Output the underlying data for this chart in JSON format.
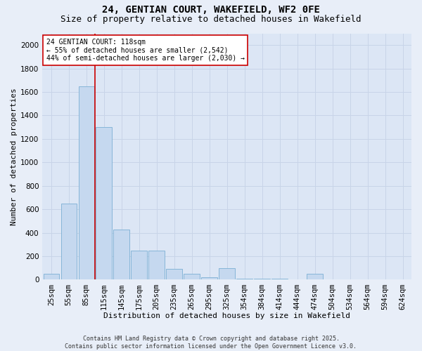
{
  "title1": "24, GENTIAN COURT, WAKEFIELD, WF2 0FE",
  "title2": "Size of property relative to detached houses in Wakefield",
  "xlabel": "Distribution of detached houses by size in Wakefield",
  "ylabel": "Number of detached properties",
  "categories": [
    "25sqm",
    "55sqm",
    "85sqm",
    "115sqm",
    "145sqm",
    "175sqm",
    "205sqm",
    "235sqm",
    "265sqm",
    "295sqm",
    "325sqm",
    "354sqm",
    "384sqm",
    "414sqm",
    "444sqm",
    "474sqm",
    "504sqm",
    "534sqm",
    "564sqm",
    "594sqm",
    "624sqm"
  ],
  "values": [
    50,
    650,
    1650,
    1300,
    430,
    250,
    250,
    90,
    50,
    20,
    100,
    10,
    10,
    10,
    5,
    50,
    0,
    0,
    0,
    0,
    0
  ],
  "bar_color": "#c5d8ef",
  "bar_edge_color": "#7bafd4",
  "vline_x": 2.5,
  "vline_color": "#cc0000",
  "annotation_text": "24 GENTIAN COURT: 118sqm\n← 55% of detached houses are smaller (2,542)\n44% of semi-detached houses are larger (2,030) →",
  "annotation_box_color": "#ffffff",
  "annotation_box_edge": "#cc0000",
  "ylim": [
    0,
    2100
  ],
  "yticks": [
    0,
    200,
    400,
    600,
    800,
    1000,
    1200,
    1400,
    1600,
    1800,
    2000
  ],
  "grid_color": "#c8d4e8",
  "bg_color": "#dce6f5",
  "footer": "Contains HM Land Registry data © Crown copyright and database right 2025.\nContains public sector information licensed under the Open Government Licence v3.0.",
  "title_fontsize": 10,
  "subtitle_fontsize": 9,
  "axis_label_fontsize": 8,
  "tick_fontsize": 7.5,
  "footer_fontsize": 6
}
